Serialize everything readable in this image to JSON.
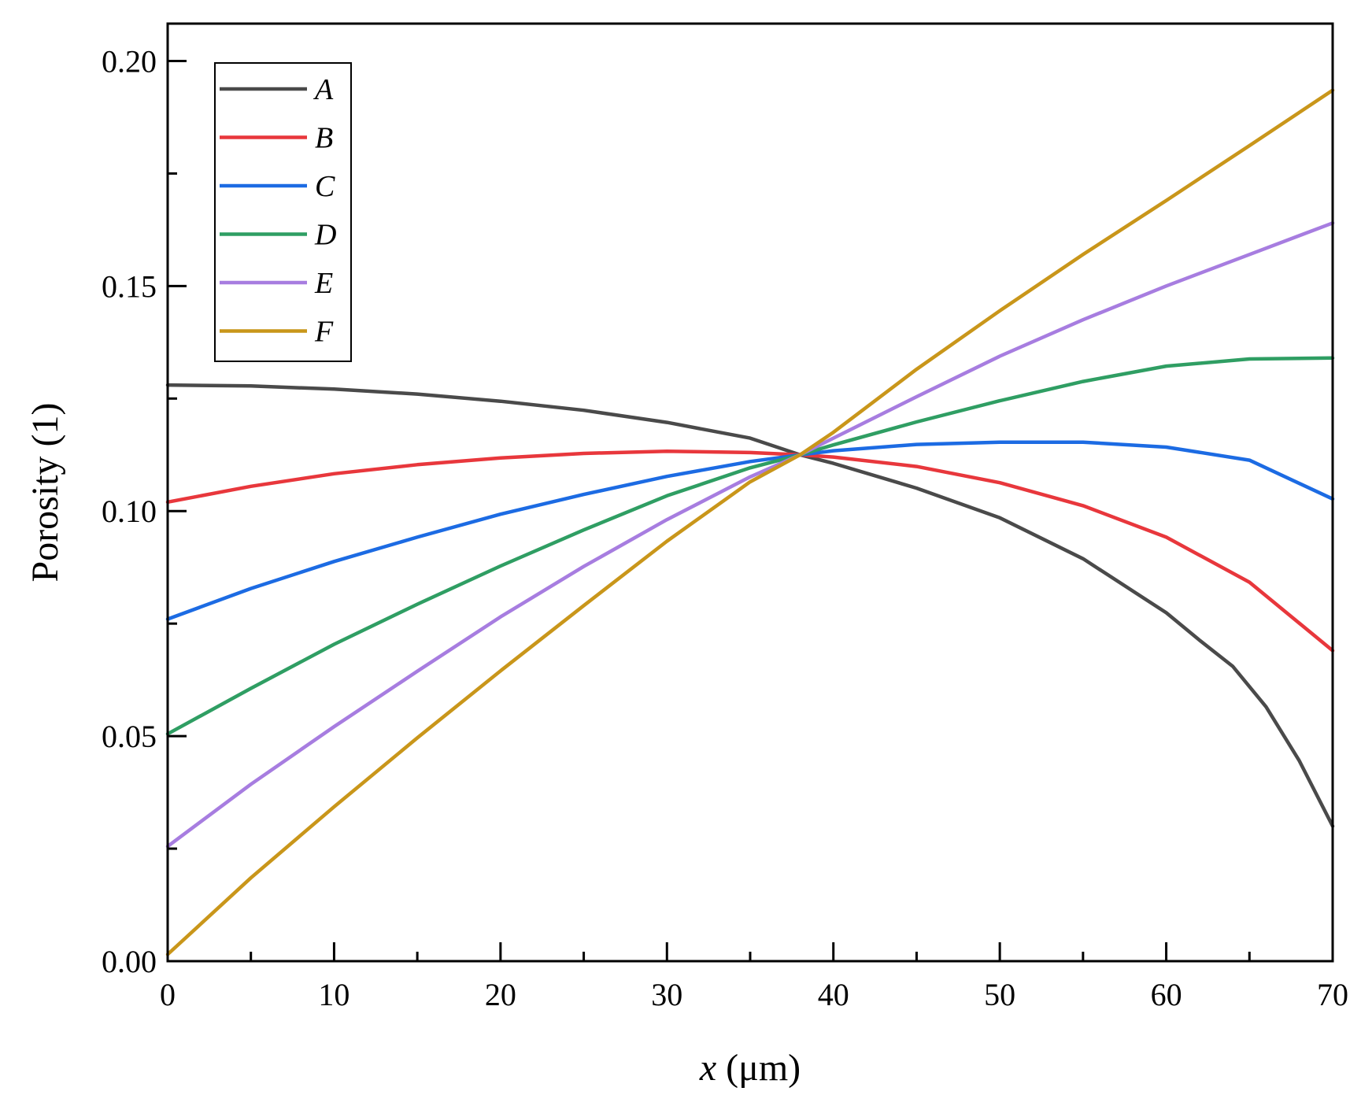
{
  "chart_data": {
    "type": "line",
    "title": "",
    "xlabel_var": "x",
    "xlabel_unit": "(μm)",
    "ylabel": "Porosity (1)",
    "xlim": [
      0,
      70
    ],
    "ylim": [
      0,
      0.2083
    ],
    "xticks": [
      0,
      10,
      20,
      30,
      40,
      50,
      60,
      70
    ],
    "xtick_labels": [
      "0",
      "10",
      "20",
      "30",
      "40",
      "50",
      "60",
      "70"
    ],
    "yticks": [
      0,
      0.05,
      0.1,
      0.15,
      0.2
    ],
    "ytick_labels": [
      "0.00",
      "0.05",
      "0.10",
      "0.15",
      "0.20"
    ],
    "grid": false,
    "legend_position": "top-left",
    "series": [
      {
        "name": "A",
        "color": "#4a4a4a",
        "x": [
          0,
          5,
          10,
          15,
          20,
          25,
          30,
          35,
          38,
          40,
          45,
          50,
          55,
          60,
          62,
          64,
          66,
          68,
          70
        ],
        "y": [
          0.128,
          0.1278,
          0.1271,
          0.126,
          0.1244,
          0.1224,
          0.1197,
          0.1162,
          0.1125,
          0.1106,
          0.1051,
          0.0985,
          0.0894,
          0.0774,
          0.0713,
          0.0655,
          0.0565,
          0.0445,
          0.03
        ]
      },
      {
        "name": "B",
        "color": "#e8373c",
        "x": [
          0,
          5,
          10,
          15,
          20,
          25,
          30,
          35,
          38,
          40,
          45,
          50,
          55,
          60,
          65,
          70
        ],
        "y": [
          0.102,
          0.1055,
          0.1083,
          0.1103,
          0.1118,
          0.1128,
          0.1133,
          0.113,
          0.1125,
          0.112,
          0.1099,
          0.1063,
          0.1012,
          0.0942,
          0.0842,
          0.069
        ]
      },
      {
        "name": "C",
        "color": "#1c6be3",
        "x": [
          0,
          5,
          10,
          15,
          20,
          25,
          30,
          35,
          38,
          40,
          45,
          50,
          55,
          60,
          65,
          70
        ],
        "y": [
          0.076,
          0.0828,
          0.0888,
          0.0942,
          0.0993,
          0.1037,
          0.1077,
          0.111,
          0.1125,
          0.1134,
          0.1148,
          0.1153,
          0.1153,
          0.1142,
          0.1113,
          0.1027
        ]
      },
      {
        "name": "D",
        "color": "#2f9e63",
        "x": [
          0,
          5,
          10,
          15,
          20,
          25,
          30,
          35,
          38,
          40,
          45,
          50,
          55,
          60,
          65,
          70
        ],
        "y": [
          0.0505,
          0.0606,
          0.0704,
          0.0793,
          0.0878,
          0.0958,
          0.1034,
          0.1096,
          0.1125,
          0.1147,
          0.1198,
          0.1245,
          0.1288,
          0.1322,
          0.1338,
          0.134
        ]
      },
      {
        "name": "E",
        "color": "#a77de0",
        "x": [
          0,
          5,
          10,
          15,
          20,
          25,
          30,
          35,
          38,
          40,
          45,
          50,
          55,
          60,
          65,
          70
        ],
        "y": [
          0.0255,
          0.0393,
          0.0521,
          0.0644,
          0.0765,
          0.0877,
          0.0981,
          0.1076,
          0.1125,
          0.1162,
          0.1254,
          0.1344,
          0.1425,
          0.15,
          0.157,
          0.164
        ]
      },
      {
        "name": "F",
        "color": "#c9961a",
        "x": [
          0,
          5,
          10,
          15,
          20,
          25,
          30,
          35,
          38,
          40,
          45,
          50,
          55,
          60,
          65,
          70
        ],
        "y": [
          0.0015,
          0.0185,
          0.0343,
          0.0496,
          0.0645,
          0.079,
          0.0933,
          0.1065,
          0.1125,
          0.1175,
          0.1315,
          0.1445,
          0.157,
          0.169,
          0.1812,
          0.1935
        ]
      }
    ]
  }
}
